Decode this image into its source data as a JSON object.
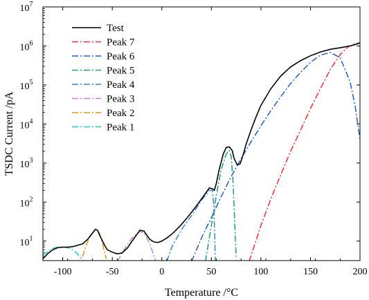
{
  "chart_data": {
    "type": "line",
    "title": "",
    "xlabel": "Temperature /°C",
    "ylabel": "TSDC Current /pA",
    "xlim": [
      -120,
      200
    ],
    "ylim_log10": [
      0.5,
      7
    ],
    "y_scale": "log",
    "grid": false,
    "legend_position": "top-left",
    "x_ticks": [
      -100,
      -50,
      0,
      50,
      100,
      150,
      200
    ],
    "y_ticks": [
      {
        "value": 10,
        "base": "10",
        "exp": "1"
      },
      {
        "value": 100,
        "base": "10",
        "exp": "2"
      },
      {
        "value": 1000,
        "base": "10",
        "exp": "3"
      },
      {
        "value": 10000,
        "base": "10",
        "exp": "4"
      },
      {
        "value": 100000,
        "base": "10",
        "exp": "5"
      },
      {
        "value": 1000000,
        "base": "10",
        "exp": "6"
      },
      {
        "value": 10000000,
        "base": "10",
        "exp": "7"
      }
    ],
    "series": [
      {
        "name": "Test",
        "color": "#000000",
        "style": "solid",
        "x": [
          -120,
          -115,
          -110,
          -105,
          -100,
          -95,
          -90,
          -85,
          -80,
          -75,
          -70,
          -67,
          -65,
          -62,
          -58,
          -55,
          -50,
          -45,
          -40,
          -35,
          -30,
          -25,
          -22,
          -18,
          -15,
          -12,
          -8,
          -4,
          0,
          5,
          10,
          15,
          20,
          25,
          30,
          35,
          40,
          45,
          48,
          51,
          53,
          55,
          58,
          62,
          65,
          68,
          71,
          73,
          76,
          79,
          82,
          85,
          90,
          95,
          100,
          110,
          120,
          130,
          140,
          150,
          160,
          170,
          180,
          190,
          196,
          200
        ],
        "y": [
          3.5,
          4.8,
          6.0,
          6.8,
          7.0,
          7.0,
          7.2,
          7.8,
          8.5,
          11,
          16,
          20,
          19,
          13,
          8,
          6,
          5.2,
          4.7,
          5,
          6.5,
          10,
          15,
          19,
          18,
          14,
          11,
          9.5,
          9.2,
          10,
          12,
          15,
          20,
          27,
          38,
          55,
          80,
          120,
          180,
          230,
          220,
          200,
          300,
          700,
          1700,
          2500,
          2600,
          2100,
          1300,
          900,
          950,
          1600,
          3000,
          7000,
          15000,
          30000,
          80000,
          170000,
          290000,
          420000,
          560000,
          700000,
          820000,
          900000,
          1000000,
          1100000,
          1200000
        ]
      },
      {
        "name": "Peak 7",
        "color": "#ff2a2a",
        "style": "dash-dot",
        "x": [
          88,
          95,
          100,
          110,
          120,
          130,
          140,
          150,
          160,
          170,
          180,
          188,
          195,
          200
        ],
        "y": [
          3,
          10,
          25,
          120,
          500,
          2000,
          7000,
          25000,
          80000,
          250000,
          600000,
          950000,
          1150000,
          1200000
        ]
      },
      {
        "name": "Peak 6",
        "color": "#1a5fd4",
        "style": "dash-dot",
        "x": [
          30,
          40,
          50,
          60,
          70,
          80,
          90,
          100,
          110,
          120,
          130,
          140,
          150,
          160,
          170,
          180,
          190,
          195,
          200
        ],
        "y": [
          3,
          12,
          40,
          140,
          450,
          1300,
          3500,
          9000,
          22000,
          50000,
          110000,
          210000,
          380000,
          580000,
          680000,
          500000,
          120000,
          30000,
          4000
        ]
      },
      {
        "name": "Peak 5",
        "color": "#12a36d",
        "style": "dash-dot",
        "x": [
          44,
          50,
          55,
          60,
          65,
          68,
          70,
          72,
          74,
          75
        ],
        "y": [
          3,
          25,
          150,
          700,
          1700,
          2100,
          1500,
          300,
          15,
          4
        ]
      },
      {
        "name": "Peak 4",
        "color": "#2f86d8",
        "style": "dash-dot",
        "x": [
          5,
          10,
          20,
          30,
          40,
          48,
          51,
          52.5,
          53.5,
          54
        ],
        "y": [
          3,
          7,
          20,
          45,
          110,
          200,
          200,
          80,
          10,
          3
        ]
      },
      {
        "name": "Peak 3",
        "color": "#c77ddb",
        "style": "dash-dot",
        "x": [
          -45,
          -40,
          -35,
          -30,
          -25,
          -22,
          -18,
          -15,
          -12,
          -9,
          -6
        ],
        "y": [
          3,
          5,
          8,
          12,
          16,
          18,
          16,
          12,
          8,
          5,
          3
        ]
      },
      {
        "name": "Peak 2",
        "color": "#e69a00",
        "style": "dash-dot",
        "x": [
          -80,
          -77,
          -74,
          -71,
          -68,
          -66,
          -63,
          -60,
          -58,
          -56
        ],
        "y": [
          4,
          7,
          11,
          15,
          19,
          20,
          16,
          9,
          5.5,
          3.5
        ]
      },
      {
        "name": "Peak 1",
        "color": "#17cbd6",
        "style": "dash-dot",
        "x": [
          -120,
          -115,
          -110,
          -105,
          -100,
          -95,
          -90,
          -86,
          -83,
          -80
        ],
        "y": [
          4.2,
          5.5,
          6.5,
          7.0,
          7.0,
          6.8,
          6.0,
          5.0,
          4.0,
          3.2
        ]
      }
    ]
  }
}
